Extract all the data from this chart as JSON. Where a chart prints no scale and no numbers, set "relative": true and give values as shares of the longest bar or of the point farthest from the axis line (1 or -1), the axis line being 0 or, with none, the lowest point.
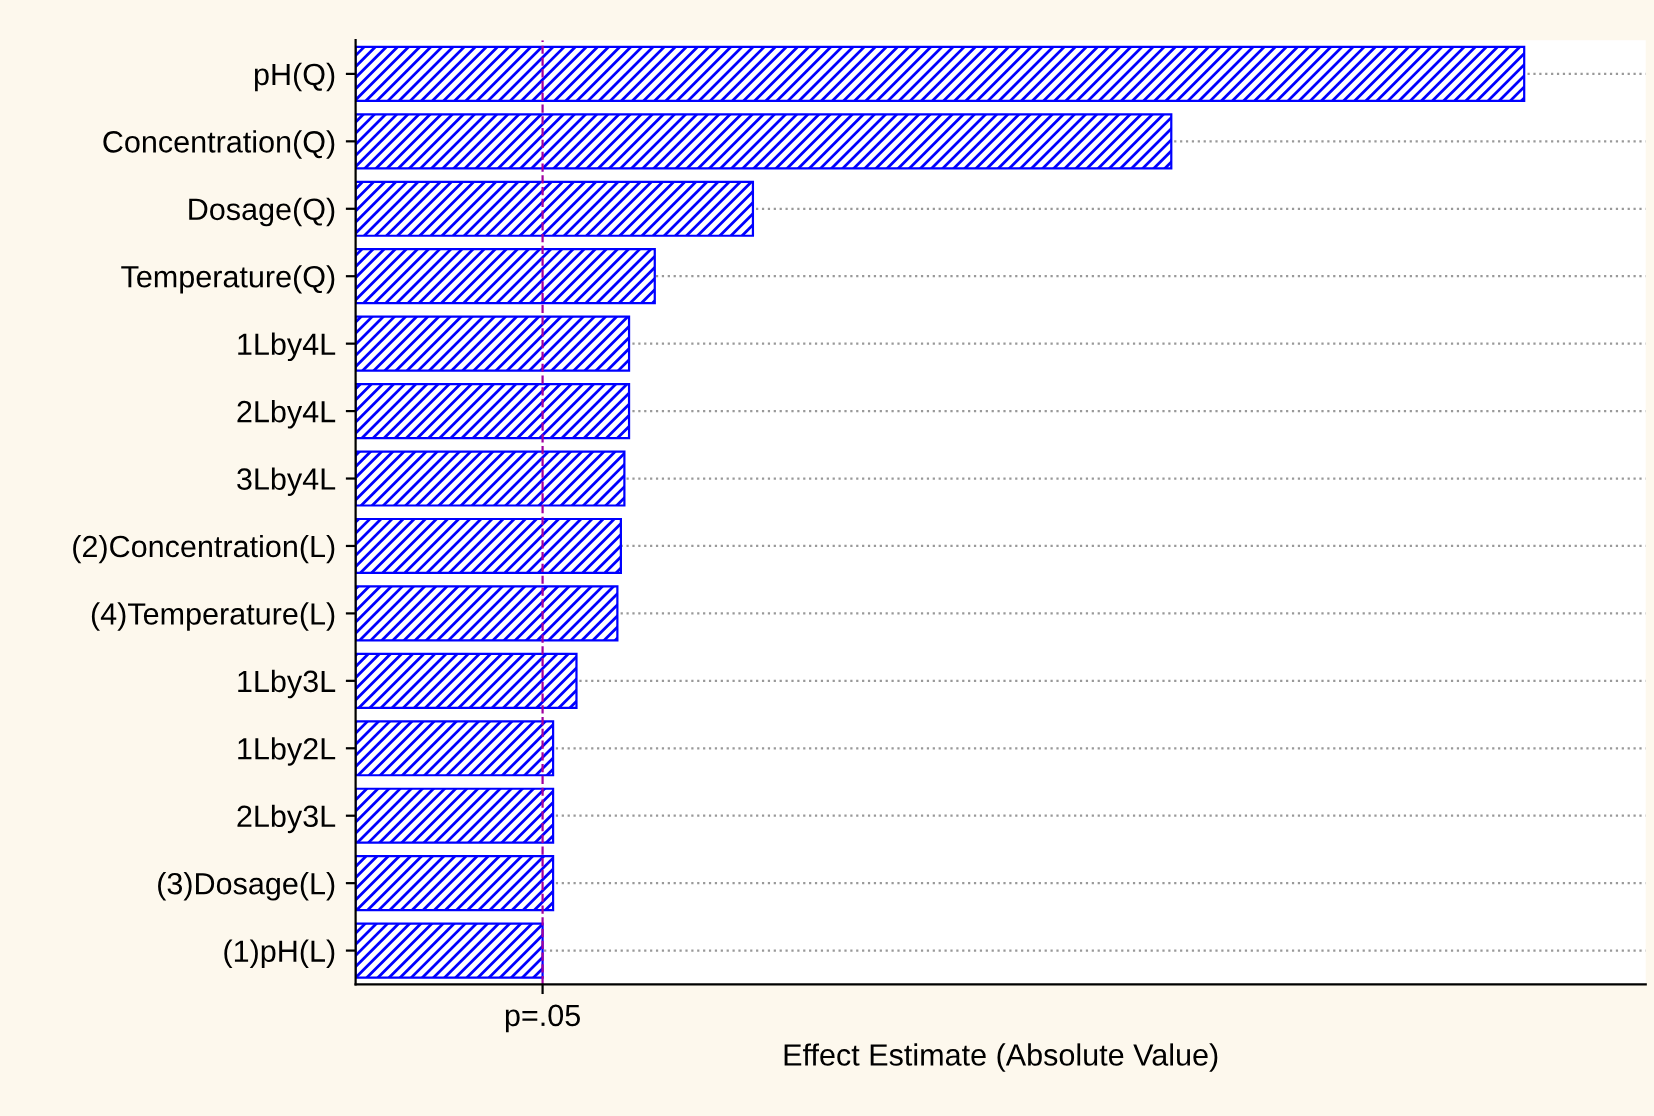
{
  "chart_data": {
    "type": "bar",
    "orientation": "horizontal",
    "relative": true,
    "xlabel": "Effect Estimate (Absolute Value)",
    "categories": [
      "pH(Q)",
      "Concentration(Q)",
      "Dosage(Q)",
      "Temperature(Q)",
      "1Lby4L",
      "2Lby4L",
      "3Lby4L",
      "(2)Concentration(L)",
      "(4)Temperature(L)",
      "1Lby3L",
      "1Lby2L",
      "2Lby3L",
      "(3)Dosage(L)",
      "(1)pH(L)"
    ],
    "values": [
      1,
      0.698,
      0.34,
      0.256,
      0.234,
      0.234,
      0.23,
      0.227,
      0.224,
      0.189,
      0.169,
      0.169,
      0.169,
      0.16
    ],
    "color": "#0000ff",
    "ref_lines": [
      {
        "axis": "x",
        "value": 0.16,
        "label": "p=.05",
        "color": "#a000a0",
        "line_style": "dashed"
      }
    ],
    "grid": "y"
  }
}
